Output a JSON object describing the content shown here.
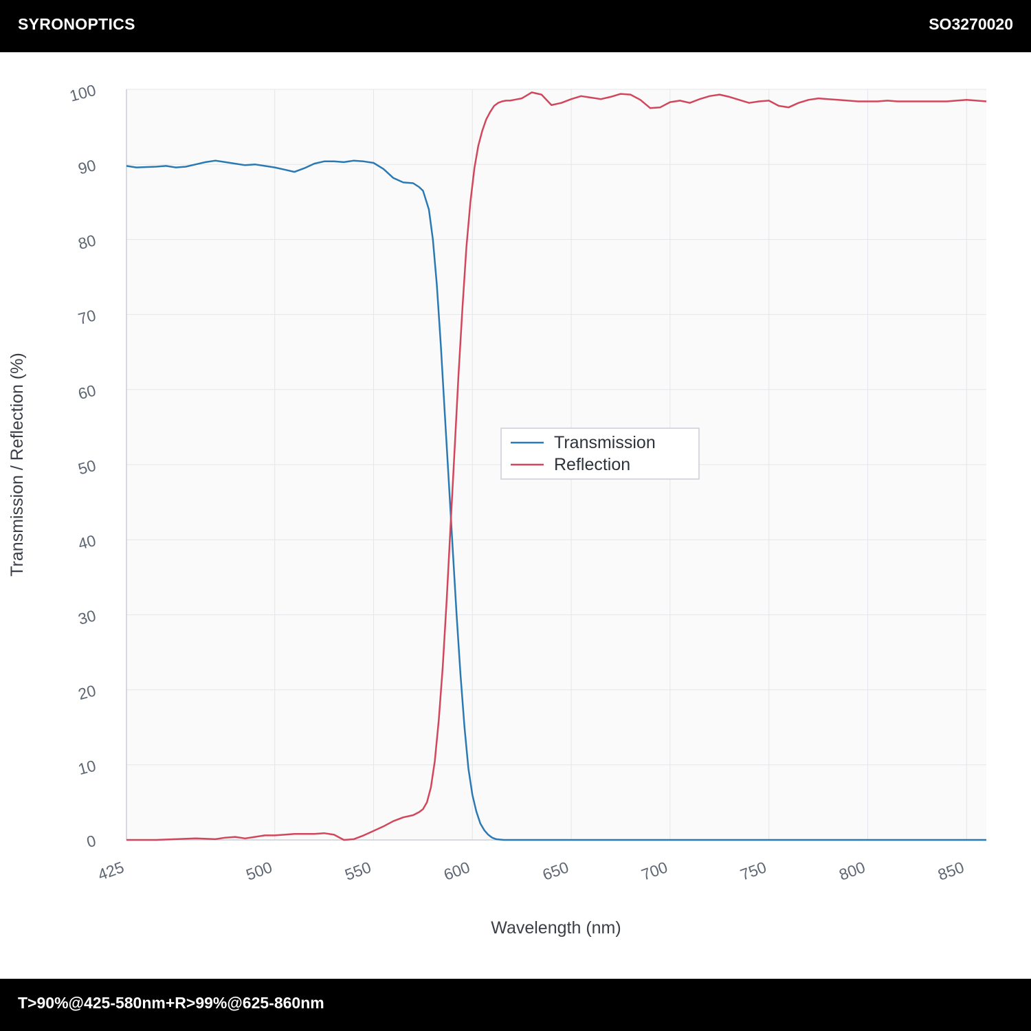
{
  "header": {
    "brand": "SYRONOPTICS",
    "part_number": "SO3270020"
  },
  "footer": {
    "spec": "T>90%@425-580nm+R>99%@625-860nm"
  },
  "chart_data": {
    "type": "line",
    "xlabel": "Wavelength (nm)",
    "ylabel": "Transmission / Reflection (%)",
    "xlim": [
      425,
      860
    ],
    "ylim": [
      0,
      100
    ],
    "xticks": [
      425,
      500,
      550,
      600,
      650,
      700,
      750,
      800,
      850
    ],
    "yticks": [
      0,
      10,
      20,
      30,
      40,
      50,
      60,
      70,
      80,
      90,
      100
    ],
    "grid": true,
    "legend_position": "center",
    "series": [
      {
        "name": "Transmission",
        "color": "#2b79b3",
        "x": [
          425,
          430,
          440,
          445,
          450,
          455,
          460,
          465,
          470,
          475,
          480,
          485,
          490,
          495,
          500,
          505,
          510,
          515,
          520,
          525,
          530,
          535,
          540,
          545,
          550,
          555,
          560,
          565,
          570,
          573,
          575,
          578,
          580,
          582,
          584,
          586,
          588,
          590,
          592,
          594,
          596,
          598,
          600,
          602,
          604,
          606,
          608,
          610,
          612,
          614,
          616,
          618,
          620,
          622,
          624,
          626,
          628,
          630,
          640,
          660,
          680,
          700,
          720,
          740,
          760,
          780,
          800,
          820,
          840,
          860
        ],
        "y": [
          89.8,
          89.6,
          89.7,
          89.8,
          89.6,
          89.7,
          90.0,
          90.3,
          90.5,
          90.3,
          90.1,
          89.9,
          90.0,
          89.8,
          89.6,
          89.3,
          89.0,
          89.5,
          90.1,
          90.4,
          90.4,
          90.3,
          90.5,
          90.4,
          90.2,
          89.4,
          88.2,
          87.6,
          87.5,
          87.0,
          86.5,
          84.0,
          80.0,
          74.0,
          66.0,
          57.0,
          48.0,
          39.0,
          30.0,
          22.0,
          15.0,
          9.5,
          6.0,
          3.8,
          2.2,
          1.3,
          0.7,
          0.3,
          0.1,
          0.05,
          0,
          0,
          0,
          0,
          0,
          0,
          0,
          0,
          0,
          0,
          0,
          0,
          0,
          0,
          0,
          0,
          0,
          0,
          0,
          0
        ]
      },
      {
        "name": "Reflection",
        "color": "#d2465c",
        "x": [
          425,
          440,
          450,
          460,
          470,
          475,
          480,
          485,
          490,
          495,
          500,
          505,
          510,
          515,
          520,
          525,
          530,
          535,
          540,
          545,
          550,
          555,
          560,
          565,
          570,
          573,
          575,
          577,
          579,
          581,
          583,
          585,
          587,
          589,
          591,
          593,
          595,
          597,
          599,
          601,
          603,
          605,
          607,
          609,
          611,
          613,
          615,
          617,
          619,
          621,
          623,
          625,
          630,
          635,
          640,
          645,
          650,
          655,
          660,
          665,
          670,
          675,
          680,
          685,
          690,
          695,
          700,
          705,
          710,
          715,
          720,
          725,
          730,
          735,
          740,
          745,
          750,
          755,
          760,
          765,
          770,
          775,
          780,
          785,
          790,
          795,
          800,
          805,
          810,
          815,
          820,
          825,
          830,
          835,
          840,
          845,
          850,
          855,
          860
        ],
        "y": [
          0,
          0,
          0.1,
          0.2,
          0.1,
          0.3,
          0.4,
          0.2,
          0.4,
          0.6,
          0.6,
          0.7,
          0.8,
          0.8,
          0.8,
          0.9,
          0.7,
          0.0,
          0.1,
          0.6,
          1.2,
          1.8,
          2.5,
          3.0,
          3.3,
          3.7,
          4.1,
          5.0,
          7.0,
          10.5,
          16.0,
          23.0,
          32.0,
          42.0,
          52.0,
          62.0,
          71.0,
          79.0,
          85.0,
          89.5,
          92.5,
          94.5,
          96.0,
          97.0,
          97.8,
          98.2,
          98.4,
          98.5,
          98.5,
          98.6,
          98.7,
          98.8,
          99.6,
          99.3,
          97.9,
          98.2,
          98.7,
          99.1,
          98.9,
          98.7,
          99.0,
          99.4,
          99.3,
          98.6,
          97.5,
          97.6,
          98.3,
          98.5,
          98.2,
          98.7,
          99.1,
          99.3,
          99.0,
          98.6,
          98.2,
          98.4,
          98.5,
          97.8,
          97.6,
          98.2,
          98.6,
          98.8,
          98.7,
          98.6,
          98.5,
          98.4,
          98.4,
          98.4,
          98.5,
          98.4,
          98.4,
          98.4,
          98.4,
          98.4,
          98.4,
          98.5,
          98.6,
          98.5,
          98.4
        ]
      }
    ]
  }
}
